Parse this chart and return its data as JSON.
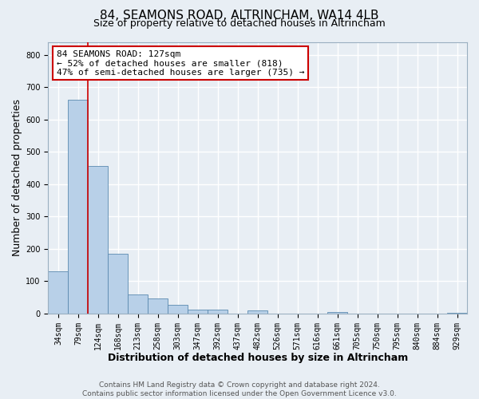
{
  "title": "84, SEAMONS ROAD, ALTRINCHAM, WA14 4LB",
  "subtitle": "Size of property relative to detached houses in Altrincham",
  "xlabel": "Distribution of detached houses by size in Altrincham",
  "ylabel": "Number of detached properties",
  "bar_labels": [
    "34sqm",
    "79sqm",
    "124sqm",
    "168sqm",
    "213sqm",
    "258sqm",
    "303sqm",
    "347sqm",
    "392sqm",
    "437sqm",
    "482sqm",
    "526sqm",
    "571sqm",
    "616sqm",
    "661sqm",
    "705sqm",
    "750sqm",
    "795sqm",
    "840sqm",
    "884sqm",
    "929sqm"
  ],
  "bar_values": [
    130,
    660,
    455,
    185,
    58,
    47,
    27,
    13,
    13,
    0,
    10,
    0,
    0,
    0,
    5,
    0,
    0,
    0,
    0,
    0,
    3
  ],
  "bar_color": "#b8d0e8",
  "bar_edge_color": "#5a8ab0",
  "vline_color": "#cc0000",
  "annotation_text": "84 SEAMONS ROAD: 127sqm\n← 52% of detached houses are smaller (818)\n47% of semi-detached houses are larger (735) →",
  "annotation_box_edge_color": "#cc0000",
  "annotation_box_face_color": "#ffffff",
  "ylim": [
    0,
    840
  ],
  "yticks": [
    0,
    100,
    200,
    300,
    400,
    500,
    600,
    700,
    800
  ],
  "footer_text": "Contains HM Land Registry data © Crown copyright and database right 2024.\nContains public sector information licensed under the Open Government Licence v3.0.",
  "bg_color": "#e8eef4",
  "grid_color": "#ffffff",
  "title_fontsize": 11,
  "subtitle_fontsize": 9,
  "label_fontsize": 9,
  "tick_fontsize": 7,
  "footer_fontsize": 6.5
}
